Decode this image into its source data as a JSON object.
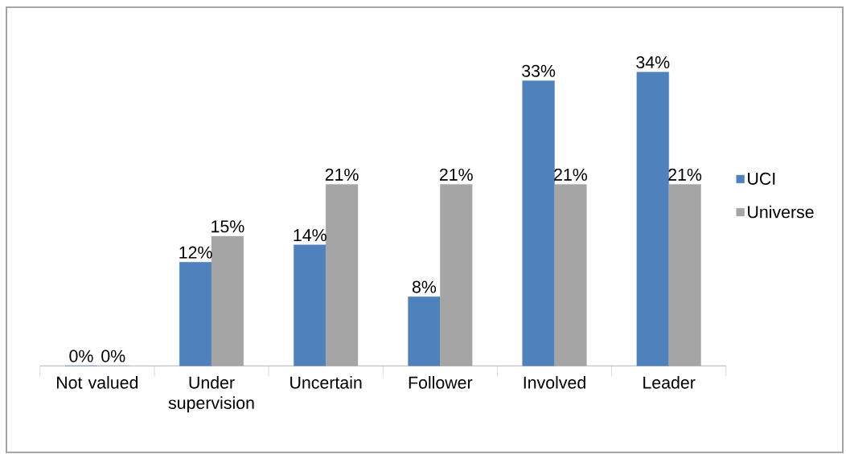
{
  "chart_data": {
    "type": "bar",
    "categories": [
      "Not valued",
      "Under supervision",
      "Uncertain",
      "Follower",
      "Involved",
      "Leader"
    ],
    "series": [
      {
        "name": "UCI",
        "color": "#4f81bd",
        "values": [
          0,
          12,
          14,
          8,
          33,
          34
        ],
        "value_labels": [
          "0%",
          "12%",
          "14%",
          "8%",
          "33%",
          "34%"
        ]
      },
      {
        "name": "Universe",
        "color": "#a5a5a5",
        "values": [
          0,
          15,
          21,
          21,
          21,
          21
        ],
        "value_labels": [
          "0%",
          "15%",
          "21%",
          "21%",
          "21%",
          "21%"
        ]
      }
    ],
    "legend": "right"
  }
}
